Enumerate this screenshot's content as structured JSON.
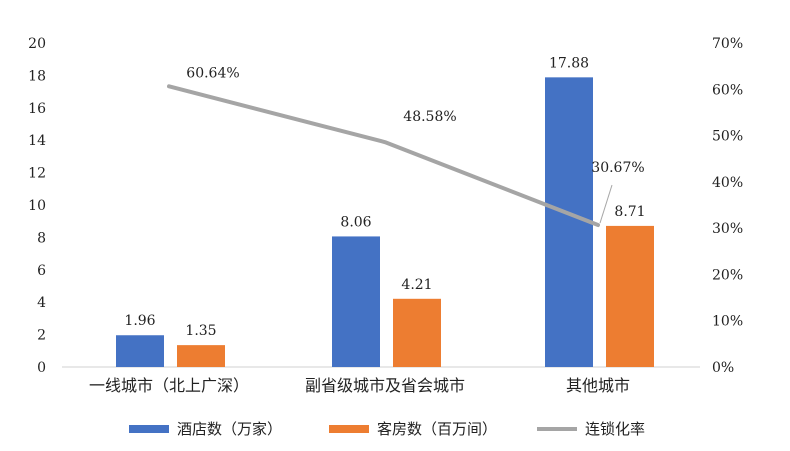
{
  "chart_data": {
    "type": "bar",
    "categories": [
      "一线城市（北上广深）",
      "副省级城市及省会城市",
      "其他城市"
    ],
    "series": [
      {
        "name": "酒店数（万家）",
        "kind": "bar",
        "axis": "left",
        "values": [
          1.96,
          8.06,
          17.88
        ],
        "labels": [
          "1.96",
          "8.06",
          "17.88"
        ],
        "color": "#4472C4"
      },
      {
        "name": "客房数（百万间）",
        "kind": "bar",
        "axis": "left",
        "values": [
          1.35,
          4.21,
          8.71
        ],
        "labels": [
          "1.35",
          "4.21",
          "8.71"
        ],
        "color": "#ED7D31"
      },
      {
        "name": "连锁化率",
        "kind": "line",
        "axis": "right",
        "values": [
          60.64,
          48.58,
          30.67
        ],
        "labels": [
          "60.64%",
          "48.58%",
          "30.67%"
        ],
        "color": "#A5A5A5"
      }
    ],
    "ylim": [
      0,
      20
    ],
    "y_ticks": [
      "0",
      "2",
      "4",
      "6",
      "8",
      "10",
      "12",
      "14",
      "16",
      "18",
      "20"
    ],
    "y2lim": [
      0,
      70
    ],
    "y2_ticks": [
      "0%",
      "10%",
      "20%",
      "30%",
      "40%",
      "50%",
      "60%",
      "70%"
    ],
    "legend_position": "bottom",
    "grid": false
  }
}
